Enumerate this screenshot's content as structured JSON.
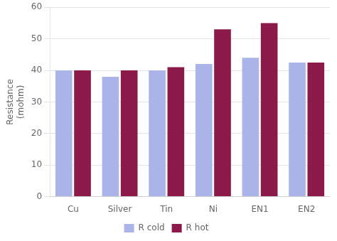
{
  "chart_data": {
    "type": "bar",
    "ylabel": [
      "Resistance",
      "(mohm)"
    ],
    "categories": [
      "Cu",
      "Silver",
      "Tin",
      "Ni",
      "EN1",
      "EN2"
    ],
    "series": [
      {
        "name": "R cold",
        "color": "#aab4e8",
        "values": [
          40,
          38,
          40,
          42,
          44,
          42.5
        ]
      },
      {
        "name": "R hot",
        "color": "#8b1a4a",
        "values": [
          40,
          40,
          41,
          53,
          55,
          42.5
        ]
      }
    ],
    "ylim": [
      0,
      60
    ],
    "yticks": [
      0,
      10,
      20,
      30,
      40,
      50,
      60
    ],
    "grid": true,
    "legend": "bottom"
  }
}
